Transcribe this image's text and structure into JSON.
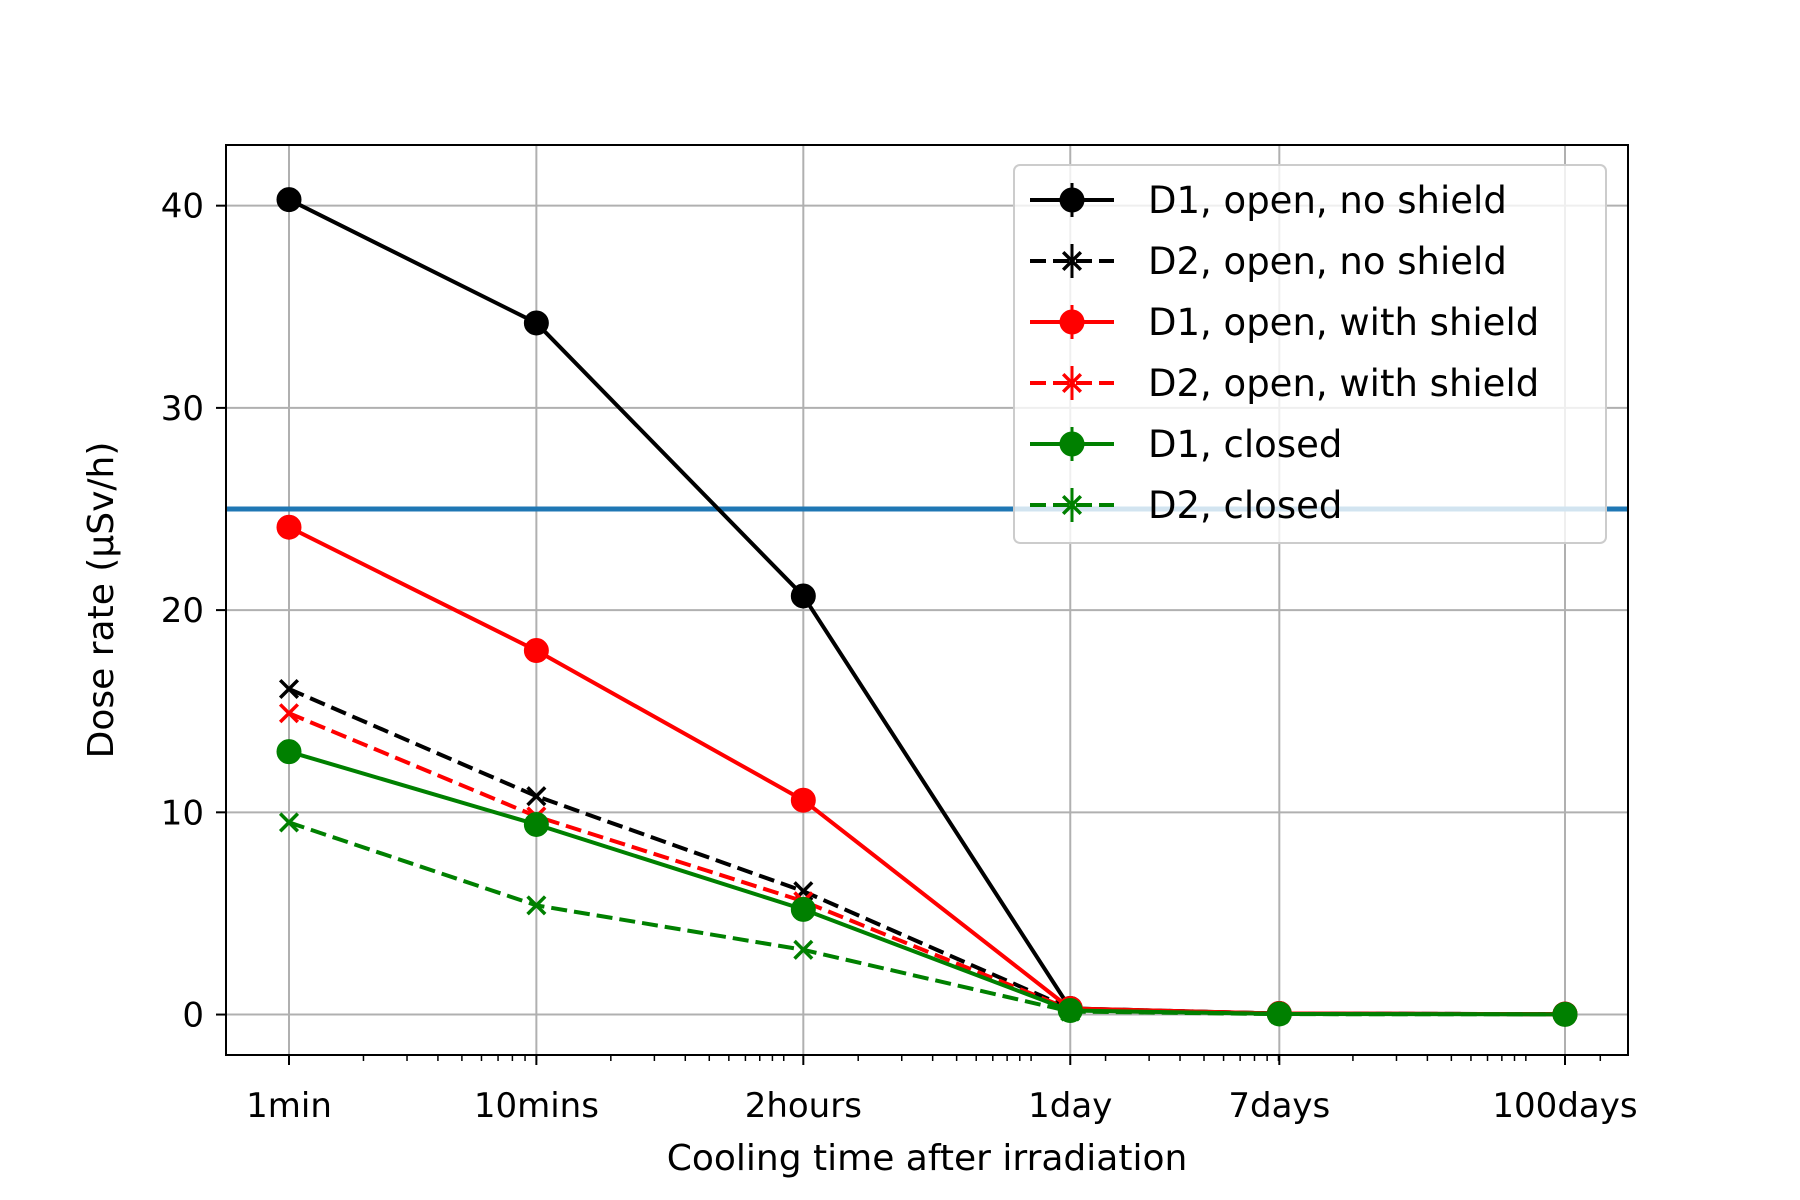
{
  "chart_data": {
    "type": "line",
    "title": "",
    "xlabel": "Cooling time after irradiation",
    "ylabel": "Dose rate (μSv/h)",
    "x_scale": "log",
    "x_unit": "minutes",
    "x": [
      1,
      10,
      120,
      1440,
      10080,
      144000
    ],
    "x_tick_labels": [
      "1min",
      "10mins",
      "2hours",
      "1day",
      "7days",
      "100days"
    ],
    "ylim": [
      -2,
      43
    ],
    "y_ticks": [
      0,
      10,
      20,
      30,
      40
    ],
    "grid": true,
    "legend_position": "top-right",
    "reference_line": {
      "y": 25,
      "color": "#1f77b4"
    },
    "series": [
      {
        "name": "D1, open, no shield",
        "color": "#000000",
        "linestyle": "solid",
        "marker": "circle",
        "values": [
          40.3,
          34.2,
          20.7,
          0.3,
          0.05,
          0.02
        ]
      },
      {
        "name": "D2, open, no shield",
        "color": "#000000",
        "linestyle": "dashed",
        "marker": "x",
        "values": [
          16.1,
          10.8,
          6.1,
          0.3,
          0.05,
          0.02
        ]
      },
      {
        "name": "D1, open, with shield",
        "color": "#ff0000",
        "linestyle": "solid",
        "marker": "circle",
        "values": [
          24.1,
          18.0,
          10.6,
          0.3,
          0.05,
          0.02
        ]
      },
      {
        "name": "D2, open, with shield",
        "color": "#ff0000",
        "linestyle": "dashed",
        "marker": "x",
        "values": [
          14.9,
          9.8,
          5.6,
          0.25,
          0.04,
          0.02
        ]
      },
      {
        "name": "D1, closed",
        "color": "#008000",
        "linestyle": "solid",
        "marker": "circle",
        "values": [
          13.0,
          9.4,
          5.2,
          0.2,
          0.03,
          0.01
        ]
      },
      {
        "name": "D2, closed",
        "color": "#008000",
        "linestyle": "dashed",
        "marker": "x",
        "values": [
          9.5,
          5.4,
          3.2,
          0.15,
          0.02,
          0.01
        ]
      }
    ]
  }
}
